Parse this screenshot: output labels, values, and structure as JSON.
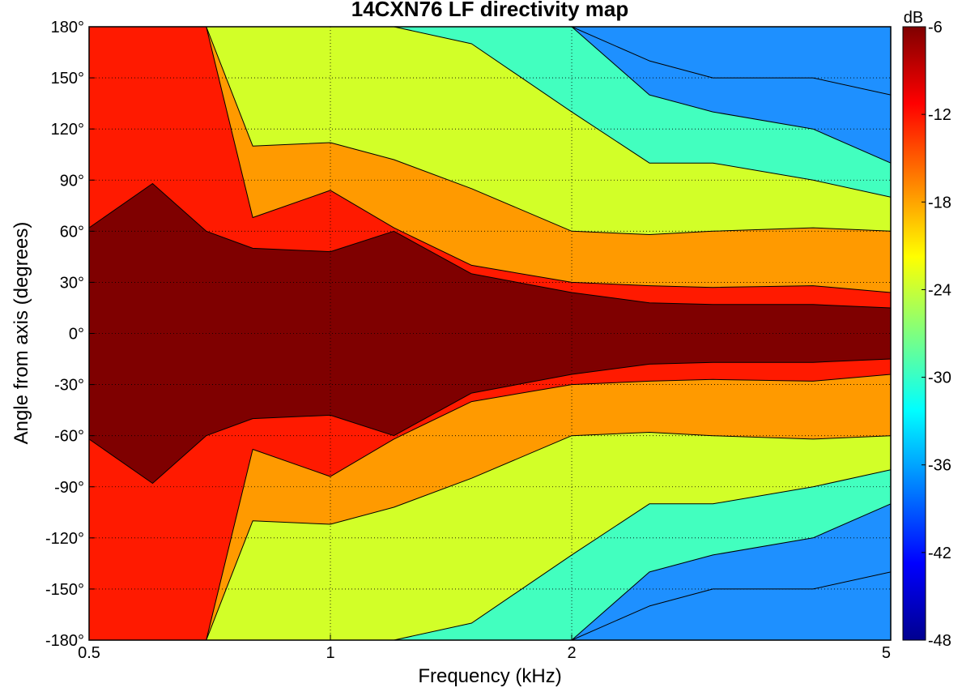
{
  "chart_data": {
    "type": "heatmap",
    "subtype": "filled-contour",
    "title": "14CXN76 LF directivity map",
    "xlabel": "Frequency (kHz)",
    "ylabel": "Angle from axis (degrees)",
    "x_scale": "log",
    "xlim": [
      0.5,
      5
    ],
    "ylim": [
      -180,
      180
    ],
    "x_ticks": [
      0.5,
      1,
      2,
      5
    ],
    "x_tick_labels": [
      "0.5",
      "1",
      "2",
      "5"
    ],
    "y_ticks": [
      180,
      150,
      120,
      90,
      60,
      30,
      0,
      -30,
      -60,
      -90,
      -120,
      -150,
      -180
    ],
    "y_tick_labels": [
      "180°",
      "150°",
      "120°",
      "90°",
      "60°",
      "30°",
      "0°",
      "-30°",
      "-60°",
      "-90°",
      "-120°",
      "-150°",
      "-180°"
    ],
    "grid": true,
    "colorbar": {
      "label": "dB",
      "range": [
        -48,
        -6
      ],
      "ticks": [
        -6,
        -12,
        -18,
        -24,
        -30,
        -36,
        -42,
        -48
      ],
      "tick_labels": [
        "-6",
        "-12",
        "-18",
        "-24",
        "-30",
        "-36",
        "-42",
        "-48"
      ],
      "colormap": "jet"
    },
    "contour_levels": [
      -6,
      -9,
      -15,
      -21,
      -27,
      -33,
      -39
    ],
    "contour_fill_colors": {
      "above_-6": "#7f0000",
      "-9_to_-6": "#ff1a00",
      "-15_to_-9": "#ff9a00",
      "-21_to_-15": "#d2ff28",
      "-27_to_-21": "#42ffbf",
      "-33_to_-27": "#1e90ff",
      "-39_to_-33": "#0020ff"
    },
    "symmetry": "mirror about 0°",
    "frequencies_khz": [
      0.5,
      0.6,
      0.7,
      0.8,
      1.0,
      1.2,
      1.5,
      2.0,
      2.5,
      3.0,
      4.0,
      5.0
    ],
    "boundaries_deg_vs_frequency": {
      "-6dB": [
        62,
        88,
        60,
        50,
        48,
        60,
        35,
        24,
        18,
        17,
        17,
        15
      ],
      "-9dB": [
        180,
        180,
        180,
        68,
        84,
        62,
        40,
        30,
        28,
        27,
        28,
        24
      ],
      "-15dB": [
        180,
        180,
        180,
        110,
        112,
        102,
        85,
        60,
        58,
        60,
        62,
        60
      ],
      "-21dB": [
        180,
        180,
        180,
        180,
        180,
        180,
        170,
        130,
        100,
        100,
        90,
        80
      ],
      "-27dB": [
        180,
        180,
        180,
        180,
        180,
        180,
        180,
        180,
        140,
        130,
        120,
        100
      ],
      "-33dB": [
        180,
        180,
        180,
        180,
        180,
        180,
        180,
        180,
        160,
        150,
        150,
        140
      ]
    }
  }
}
